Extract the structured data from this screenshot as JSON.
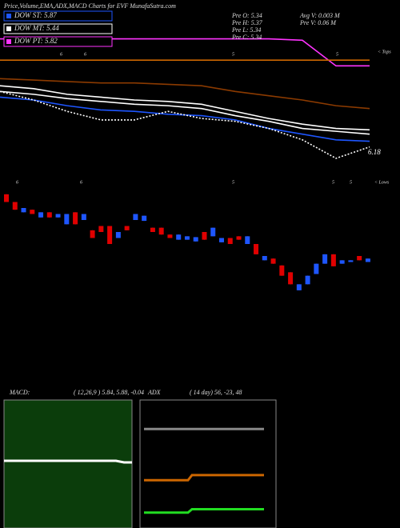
{
  "chart_data": [
    {
      "type": "line",
      "title": "Price,Volume,EMA,ADX,MACD Charts for EVF MunafaSutra.com",
      "annotations": [
        {
          "text": "DOW ST: 5.87",
          "color": "#1e56ff"
        },
        {
          "text": "DOW MT: 5.44",
          "color": "#ffffff"
        },
        {
          "text": "DOW PT: 5.82",
          "color": "#ff33ff"
        }
      ],
      "info": [
        "Pre O: 5.34",
        "Avg V: 0.003 M",
        "Pre H: 5.37",
        "Pre V: 0.06 M",
        "Pre L: 5.34",
        "Pre C: 5.34"
      ],
      "markers": [
        "6",
        "6",
        "5",
        "5"
      ],
      "side_label": "< Tops",
      "end_label": 6.18,
      "x": [
        0,
        1,
        2,
        3,
        4,
        5,
        6,
        7,
        8,
        9,
        10,
        11
      ],
      "ylim": [
        6.1,
        7.0
      ],
      "series": [
        {
          "color": "#ff33ff",
          "values": [
            6.98,
            6.98,
            6.98,
            6.98,
            6.98,
            6.98,
            6.98,
            6.98,
            6.98,
            6.97,
            6.79,
            6.79
          ]
        },
        {
          "color": "#cc6600",
          "values": [
            6.83,
            6.83,
            6.83,
            6.83,
            6.83,
            6.83,
            6.83,
            6.83,
            6.83,
            6.83,
            6.83,
            6.83
          ]
        },
        {
          "color": "#8b3a00",
          "values": [
            6.7,
            6.69,
            6.68,
            6.67,
            6.67,
            6.66,
            6.65,
            6.61,
            6.58,
            6.55,
            6.51,
            6.49
          ]
        },
        {
          "color": "#ffffff",
          "values": [
            6.65,
            6.63,
            6.59,
            6.57,
            6.55,
            6.54,
            6.52,
            6.47,
            6.42,
            6.38,
            6.35,
            6.34
          ]
        },
        {
          "color": "#ffffff",
          "values": [
            6.61,
            6.59,
            6.56,
            6.54,
            6.52,
            6.51,
            6.49,
            6.44,
            6.4,
            6.35,
            6.33,
            6.31
          ]
        },
        {
          "color": "#1e56ff",
          "values": [
            6.57,
            6.55,
            6.51,
            6.48,
            6.47,
            6.45,
            6.44,
            6.41,
            6.35,
            6.31,
            6.27,
            6.26
          ]
        },
        {
          "color": "#ffffff",
          "dashed": true,
          "values": [
            6.61,
            6.55,
            6.47,
            6.41,
            6.41,
            6.47,
            6.42,
            6.4,
            6.35,
            6.27,
            6.14,
            6.22
          ]
        }
      ]
    },
    {
      "type": "candlestick",
      "markers": [
        "6",
        "6",
        "5",
        "5",
        "5"
      ],
      "side_label": "< Lows",
      "up_color": "#1e56ff",
      "down_color": "#e00000",
      "ylim": [
        5.0,
        6.4
      ],
      "open": [
        6.28,
        6.19,
        6.07,
        6.1,
        6.01,
        6.07,
        6.01,
        5.93,
        6.07,
        5.98,
        5.86,
        5.91,
        5.91,
        5.77,
        5.91,
        5.98,
        5.97,
        5.89,
        5.89,
        5.81,
        5.75,
        5.75,
        5.73,
        5.84,
        5.79,
        5.72,
        5.77,
        5.79,
        5.7,
        5.7,
        5.51,
        5.53,
        5.45,
        5.37,
        5.16,
        5.23,
        5.35,
        5.47,
        5.58,
        5.47,
        5.49,
        5.56,
        5.49
      ],
      "close": [
        6.19,
        6.1,
        6.12,
        6.05,
        6.07,
        6.01,
        6.05,
        6.05,
        5.93,
        6.05,
        5.77,
        5.84,
        5.7,
        5.84,
        5.86,
        6.05,
        6.03,
        5.84,
        5.81,
        5.77,
        5.81,
        5.79,
        5.78,
        5.75,
        5.89,
        5.77,
        5.7,
        5.75,
        5.79,
        5.58,
        5.56,
        5.47,
        5.33,
        5.23,
        5.23,
        5.33,
        5.47,
        5.58,
        5.44,
        5.51,
        5.51,
        5.51,
        5.53
      ]
    },
    {
      "type": "line",
      "title": "MACD:",
      "subtitle": "( 12,26,9 ) 5.84, 5.88, -0.04",
      "background": "#0b3d0b",
      "x": [
        0,
        28,
        30,
        32
      ],
      "ylim": [
        5.0,
        6.6
      ],
      "series": [
        {
          "color": "#ffffff",
          "values": [
            5.84,
            5.84,
            5.82,
            5.82
          ]
        }
      ]
    },
    {
      "type": "line",
      "title": "ADX",
      "subtitle": "( 14 day) 56, -23, 48",
      "background": "#000000",
      "x": [
        0,
        11,
        12,
        30
      ],
      "ylim": [
        0,
        75
      ],
      "series": [
        {
          "color": "#888888",
          "values": [
            58,
            58,
            58,
            58
          ]
        },
        {
          "color": "#cc6600",
          "values": [
            28,
            28,
            31,
            31
          ]
        },
        {
          "color": "#22dd22",
          "values": [
            9,
            9,
            11,
            11
          ]
        }
      ]
    }
  ]
}
